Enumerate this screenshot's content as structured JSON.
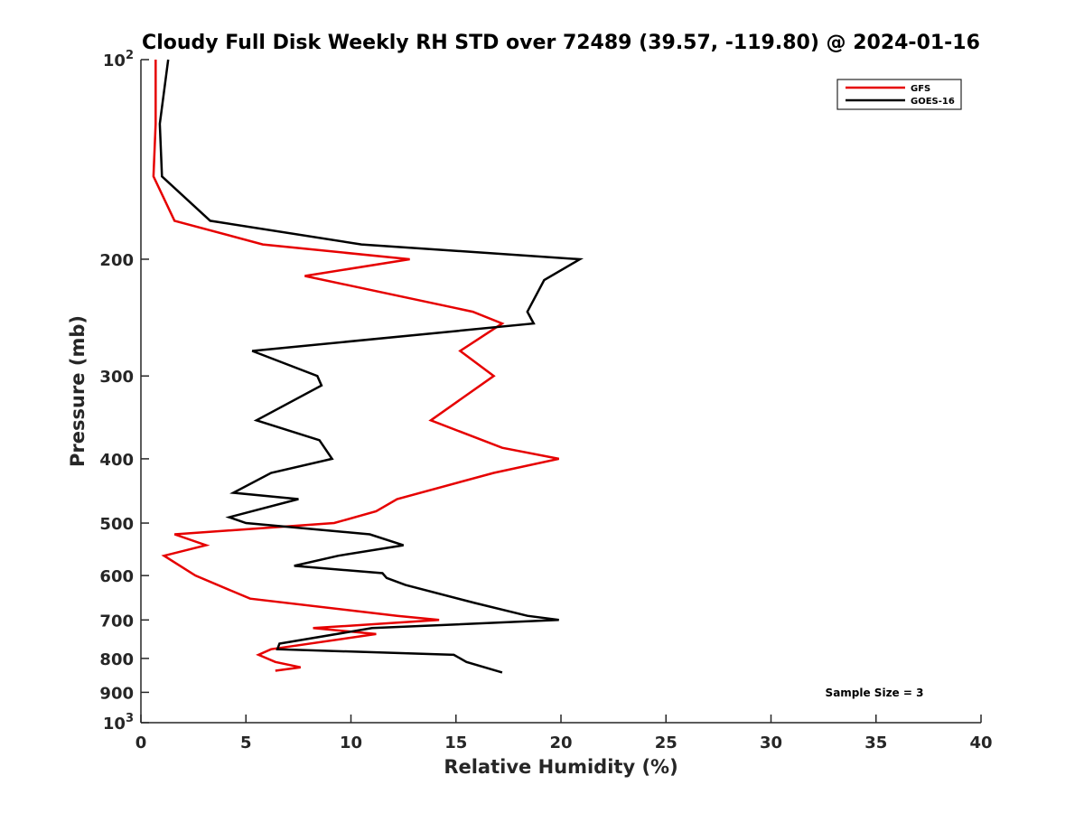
{
  "chart_data": {
    "type": "line",
    "title": "Cloudy Full Disk Weekly RH STD over 72489 (39.57, -119.80) @ 2024-01-16",
    "xlabel": "Relative Humidity (%)",
    "ylabel": "Pressure (mb)",
    "xlim": [
      0,
      40
    ],
    "ylim": [
      100,
      1000
    ],
    "yscale": "log",
    "y_reversed": true,
    "grid": false,
    "legend_position": "top-right",
    "x_ticks": [
      "0",
      "5",
      "10",
      "15",
      "20",
      "25",
      "30",
      "35",
      "40"
    ],
    "y_ticks": [
      {
        "value": 100,
        "base": "10",
        "exp": "2"
      },
      {
        "value": 200,
        "label": "200"
      },
      {
        "value": 300,
        "label": "300"
      },
      {
        "value": 400,
        "label": "400"
      },
      {
        "value": 500,
        "label": "500"
      },
      {
        "value": 600,
        "label": "600"
      },
      {
        "value": 700,
        "label": "700"
      },
      {
        "value": 800,
        "label": "800"
      },
      {
        "value": 900,
        "label": "900"
      },
      {
        "value": 1000,
        "base": "10",
        "exp": "3"
      }
    ],
    "series": [
      {
        "name": "GFS",
        "color": "#e60000",
        "points": [
          [
            0.7,
            100
          ],
          [
            0.7,
            125
          ],
          [
            0.6,
            150
          ],
          [
            1.6,
            175
          ],
          [
            5.8,
            190
          ],
          [
            12.8,
            200
          ],
          [
            7.8,
            212
          ],
          [
            15.8,
            240
          ],
          [
            17.2,
            250
          ],
          [
            15.2,
            275
          ],
          [
            16.8,
            300
          ],
          [
            13.8,
            350
          ],
          [
            17.2,
            385
          ],
          [
            19.9,
            400
          ],
          [
            16.8,
            420
          ],
          [
            12.2,
            460
          ],
          [
            11.2,
            480
          ],
          [
            9.2,
            500
          ],
          [
            1.6,
            520
          ],
          [
            3.1,
            540
          ],
          [
            1.1,
            560
          ],
          [
            2.6,
            600
          ],
          [
            5.2,
            650
          ],
          [
            12.2,
            690
          ],
          [
            14.2,
            700
          ],
          [
            8.2,
            720
          ],
          [
            11.2,
            735
          ],
          [
            6.2,
            775
          ],
          [
            5.6,
            790
          ],
          [
            6.4,
            810
          ],
          [
            7.6,
            825
          ],
          [
            6.4,
            835
          ]
        ]
      },
      {
        "name": "GOES-16",
        "color": "#000000",
        "points": [
          [
            1.3,
            100
          ],
          [
            0.9,
            125
          ],
          [
            1.0,
            150
          ],
          [
            3.3,
            175
          ],
          [
            10.5,
            190
          ],
          [
            20.9,
            200
          ],
          [
            19.2,
            215
          ],
          [
            18.4,
            240
          ],
          [
            18.7,
            250
          ],
          [
            5.3,
            275
          ],
          [
            8.4,
            300
          ],
          [
            8.6,
            310
          ],
          [
            5.5,
            350
          ],
          [
            8.5,
            375
          ],
          [
            9.1,
            400
          ],
          [
            6.2,
            420
          ],
          [
            4.4,
            450
          ],
          [
            7.5,
            460
          ],
          [
            4.2,
            490
          ],
          [
            5.0,
            500
          ],
          [
            10.9,
            520
          ],
          [
            12.5,
            540
          ],
          [
            9.4,
            560
          ],
          [
            7.3,
            580
          ],
          [
            11.5,
            595
          ],
          [
            11.7,
            605
          ],
          [
            12.6,
            620
          ],
          [
            15.9,
            660
          ],
          [
            18.4,
            690
          ],
          [
            19.9,
            700
          ],
          [
            11.0,
            720
          ],
          [
            6.6,
            760
          ],
          [
            6.5,
            775
          ],
          [
            14.9,
            790
          ],
          [
            15.5,
            810
          ],
          [
            17.2,
            840
          ]
        ]
      }
    ],
    "annotation": "Sample Size = 3"
  }
}
